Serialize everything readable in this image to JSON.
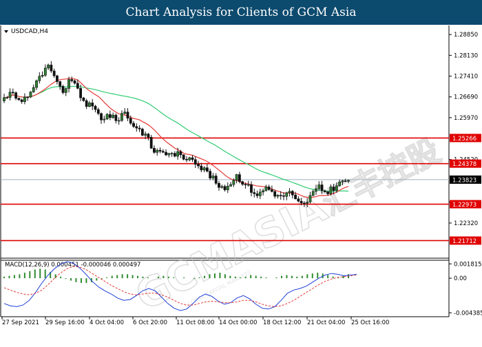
{
  "banner": {
    "title": "Chart Analysis for Clients of GCM Asia"
  },
  "symbol_label": "USDCAD,H4",
  "watermark": {
    "text": "GCMASIA",
    "subtext": "GLOBAL CAPITAL MARKETS",
    "chinese": "汇丰控股"
  },
  "colors": {
    "up_candle": "#2e7d32",
    "down_candle": "#111111",
    "ma_fast": "#e53935",
    "ma_slow": "#2ecc71",
    "levels": "#e00000",
    "price_line": "#9eb0c0",
    "macd_line": "#1e3fd8",
    "signal_line": "#e53935",
    "histogram": "#2e8b2e",
    "price_tag": "#000000"
  },
  "chart_data": [
    {
      "type": "candlestick",
      "title": "USDCAD,H4",
      "y_ticks": [
        "1.28850",
        "1.28130",
        "1.27410",
        "1.26690",
        "1.25970",
        "1.24520",
        "1.23040",
        "1.22320"
      ],
      "ylim": [
        1.2115,
        1.2914
      ],
      "x_ticks": [
        "27 Sep 2021",
        "29 Sep 16:00",
        "4 Oct 04:00",
        "6 Oct 20:00",
        "11 Oct 08:00",
        "14 Oct 00:00",
        "18 Oct 12:00",
        "21 Oct 04:00",
        "25 Oct 16:00"
      ],
      "levels": [
        1.25266,
        1.24378,
        1.22973,
        1.21712
      ],
      "level_labels": [
        "1.25266",
        "1.24378",
        "1.22973",
        "1.21712"
      ],
      "current_price": 1.23823,
      "current_price_label": "1.23823",
      "close_path": [
        1.2665,
        1.2685,
        1.2655,
        1.267,
        1.2705,
        1.2745,
        1.2775,
        1.2715,
        1.2688,
        1.2735,
        1.2678,
        1.2645,
        1.2628,
        1.2595,
        1.2608,
        1.2585,
        1.262,
        1.2578,
        1.2557,
        1.2535,
        1.2477,
        1.2485,
        1.2467,
        1.2475,
        1.2452,
        1.2467,
        1.243,
        1.2412,
        1.2382,
        1.2347,
        1.2363,
        1.2398,
        1.2372,
        1.2347,
        1.2328,
        1.2357,
        1.2337,
        1.232,
        1.2342,
        1.2307,
        1.2292,
        1.2328,
        1.2355,
        1.2338,
        1.2355,
        1.2372,
        1.2382
      ]
    },
    {
      "type": "macd",
      "label": "MACD(12,26,9) 0.000451 -0.000046 0.000497",
      "y_ticks": [
        "0.001815",
        "0.00",
        "-0.004385"
      ],
      "ylim": [
        -0.0047,
        0.0021
      ],
      "histogram": [
        0.0002,
        0.0003,
        0.0004,
        0.0005,
        0.0007,
        0.0009,
        0.0011,
        0.0012,
        0.0011,
        0.0008,
        0.0005,
        0.0002,
        -0.0001,
        -0.0003,
        -0.0005,
        -0.0006,
        -0.0006,
        -0.0005,
        -0.0003,
        -0.0001,
        0.0001,
        0.0003,
        0.0004,
        0.0005,
        0.0005,
        0.0004,
        0.0003,
        0.0002,
        0.0001,
        0.0,
        0.0002,
        0.0003,
        0.0002,
        0.0001,
        0.0,
        0.0001,
        0.0,
        -0.0001,
        0.0001,
        0.0003,
        0.0005,
        0.0006,
        0.0007,
        0.0005,
        0.0003,
        0.0002,
        0.0001,
        0.0002,
        0.0004,
        0.0003,
        0.0002,
        0.0001,
        0.0,
        0.0001,
        0.0003,
        0.0004,
        0.0003,
        0.0002,
        0.0003,
        0.0005,
        0.0006,
        0.0007,
        0.0006,
        0.0004,
        0.0002,
        0.0001,
        0.0003,
        0.0005
      ],
      "macd_line": [
        -0.0032,
        -0.0035,
        -0.0036,
        -0.0034,
        -0.0028,
        -0.0018,
        -0.0006,
        0.0004,
        0.0012,
        0.0018,
        0.0021,
        0.0019,
        0.0013,
        0.0005,
        -0.0004,
        -0.0011,
        -0.0016,
        -0.002,
        -0.0025,
        -0.0028,
        -0.0027,
        -0.0022,
        -0.0016,
        -0.0013,
        -0.0016,
        -0.0024,
        -0.0032,
        -0.0038,
        -0.0041,
        -0.0039,
        -0.0032,
        -0.0024,
        -0.002,
        -0.0023,
        -0.0029,
        -0.0033,
        -0.0031,
        -0.0025,
        -0.0022,
        -0.0026,
        -0.0033,
        -0.0038,
        -0.0039,
        -0.0036,
        -0.0028,
        -0.0019,
        -0.0015,
        -0.0013,
        -0.001,
        -0.0005,
        0.0,
        0.0004,
        0.0006,
        0.0005,
        0.0003,
        0.0004,
        0.0005
      ],
      "signal_line": [
        -0.0012,
        -0.0015,
        -0.0018,
        -0.002,
        -0.0021,
        -0.0019,
        -0.0015,
        -0.0008,
        0.0,
        0.0007,
        0.0012,
        0.0015,
        0.0014,
        0.0011,
        0.0006,
        0.0001,
        -0.0004,
        -0.0009,
        -0.0013,
        -0.0017,
        -0.002,
        -0.0021,
        -0.002,
        -0.0019,
        -0.0019,
        -0.0021,
        -0.0024,
        -0.0028,
        -0.0032,
        -0.0034,
        -0.0034,
        -0.0032,
        -0.003,
        -0.0029,
        -0.003,
        -0.0031,
        -0.0031,
        -0.003,
        -0.0028,
        -0.0028,
        -0.003,
        -0.0033,
        -0.0035,
        -0.0036,
        -0.0035,
        -0.0032,
        -0.0028,
        -0.0023,
        -0.0018,
        -0.0013,
        -0.0008,
        -0.0004,
        -0.0001,
        0.0001,
        0.0002,
        0.0003,
        0.0004
      ]
    }
  ]
}
